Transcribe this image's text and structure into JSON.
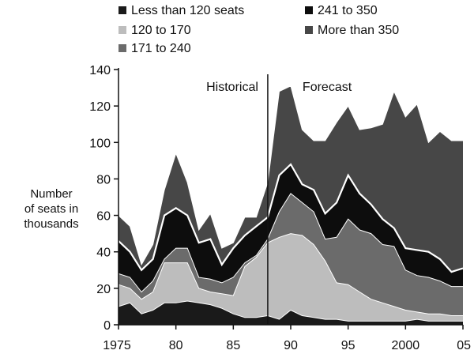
{
  "chart_data": {
    "type": "area",
    "title": "",
    "xlabel": "",
    "ylabel": "Number of seats in thousands",
    "ylabel_lines": [
      "Number",
      "of seats in",
      "thousands"
    ],
    "x": [
      1975,
      1976,
      1977,
      1978,
      1979,
      1980,
      1981,
      1982,
      1983,
      1984,
      1985,
      1986,
      1987,
      1988,
      1989,
      1990,
      1991,
      1992,
      1993,
      1994,
      1995,
      1996,
      1997,
      1998,
      1999,
      2000,
      2001,
      2002,
      2003,
      2004,
      2005
    ],
    "x_tick_values": [
      1975,
      1980,
      1985,
      1990,
      1995,
      2000,
      2005
    ],
    "x_tick_labels": [
      "1975",
      "80",
      "85",
      "90",
      "95",
      "2000",
      "05"
    ],
    "y_ticks": [
      0,
      20,
      40,
      60,
      80,
      100,
      120,
      140
    ],
    "xlim": [
      1975,
      2005
    ],
    "ylim": [
      0,
      140
    ],
    "stacked": true,
    "divider_x": 1988,
    "annotations": {
      "historical": "Historical",
      "forecast": "Forecast"
    },
    "series": [
      {
        "name": "Less than 120 seats",
        "color": "#1a1a1a",
        "values": [
          10,
          12,
          6,
          8,
          12,
          12,
          13,
          12,
          11,
          9,
          6,
          4,
          4,
          5,
          3,
          8,
          5,
          4,
          3,
          3,
          2,
          2,
          2,
          2,
          2,
          2,
          3,
          2,
          2,
          2,
          2
        ]
      },
      {
        "name": "120 to 170",
        "color": "#bdbdbd",
        "values": [
          12,
          8,
          8,
          10,
          22,
          22,
          21,
          8,
          7,
          8,
          10,
          28,
          33,
          40,
          45,
          42,
          44,
          40,
          32,
          20,
          20,
          16,
          12,
          10,
          8,
          6,
          4,
          4,
          4,
          3,
          3
        ]
      },
      {
        "name": "171 to 240",
        "color": "#6b6b6b",
        "values": [
          6,
          6,
          4,
          6,
          2,
          8,
          8,
          6,
          7,
          6,
          10,
          2,
          1,
          2,
          14,
          22,
          18,
          18,
          12,
          25,
          36,
          34,
          36,
          32,
          33,
          22,
          20,
          20,
          18,
          16,
          16
        ]
      },
      {
        "name": "241 to 350",
        "color": "#0d0d0d",
        "values": [
          18,
          14,
          12,
          12,
          24,
          22,
          18,
          19,
          22,
          10,
          16,
          15,
          16,
          12,
          20,
          16,
          10,
          12,
          14,
          19,
          24,
          20,
          16,
          14,
          10,
          12,
          14,
          14,
          12,
          8,
          10
        ]
      },
      {
        "name": "More than 350",
        "color": "#474747",
        "values": [
          14,
          14,
          3,
          8,
          14,
          30,
          18,
          7,
          14,
          9,
          3,
          10,
          5,
          19,
          46,
          43,
          30,
          27,
          40,
          44,
          38,
          35,
          42,
          52,
          75,
          72,
          80,
          60,
          70,
          72,
          70
        ]
      }
    ],
    "legend": {
      "position": "top"
    }
  }
}
